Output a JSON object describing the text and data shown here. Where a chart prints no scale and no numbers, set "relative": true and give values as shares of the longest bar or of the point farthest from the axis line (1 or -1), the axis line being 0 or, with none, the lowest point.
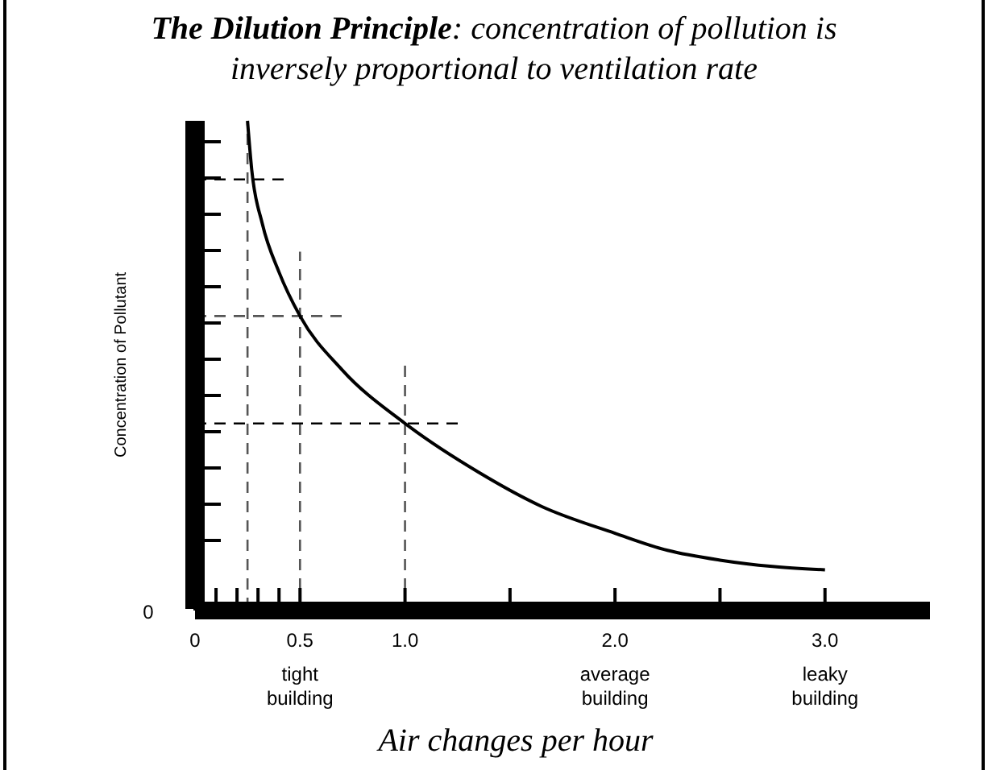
{
  "chart_data": {
    "type": "line",
    "title": "The Dilution Principle: concentration of pollution is inversely proportional to ventilation rate",
    "xlabel": "Air changes per hour",
    "ylabel": "Concentration of Pollutant",
    "relative": true,
    "x": [
      0.25,
      0.27,
      0.32,
      0.4,
      0.5,
      0.7,
      1.0,
      1.35,
      1.65,
      2.0,
      2.25,
      2.5,
      2.75,
      3.0
    ],
    "series": [
      {
        "color": "#000000",
        "values": [
          1.0,
          0.9,
          0.79,
          0.69,
          0.6,
          0.49,
          0.38,
          0.28,
          0.21,
          0.155,
          0.12,
          0.1,
          0.087,
          0.08
        ]
      }
    ],
    "xlim": [
      0,
      3.5
    ],
    "xticks": [
      0,
      {
        "value": 0.1,
        "label": null
      },
      {
        "value": 0.2,
        "label": null
      },
      {
        "value": 0.3,
        "label": null
      },
      {
        "value": 0.4,
        "label": null
      },
      {
        "value": 0.5,
        "label": "0.5 tight building"
      },
      {
        "value": 1,
        "label": "1.0"
      },
      {
        "value": 1.5,
        "label": null
      },
      {
        "value": 2,
        "label": "2.0 average building"
      },
      {
        "value": 2.5,
        "label": null
      },
      {
        "value": 3,
        "label": "3.0 leaky building"
      }
    ],
    "ref_lines": [
      {
        "axis": "x",
        "value": 0.25,
        "line_style": "dashed",
        "color": "#555555"
      },
      {
        "axis": "x",
        "value": 0.5,
        "line_style": "dashed",
        "color": "#555555"
      },
      {
        "axis": "x",
        "value": 1.0,
        "line_style": "dashed",
        "color": "#555555"
      },
      {
        "axis": "y",
        "value": 0.88,
        "line_style": "dashed",
        "color": "#000000"
      },
      {
        "axis": "y",
        "value": 0.6,
        "line_style": "dashed",
        "color": "#555555"
      },
      {
        "axis": "y",
        "value": 0.38,
        "line_style": "dashed",
        "color": "#000000"
      }
    ],
    "annotations": [
      "0"
    ],
    "grid": false,
    "marker": "none",
    "line_style": "solid"
  }
}
